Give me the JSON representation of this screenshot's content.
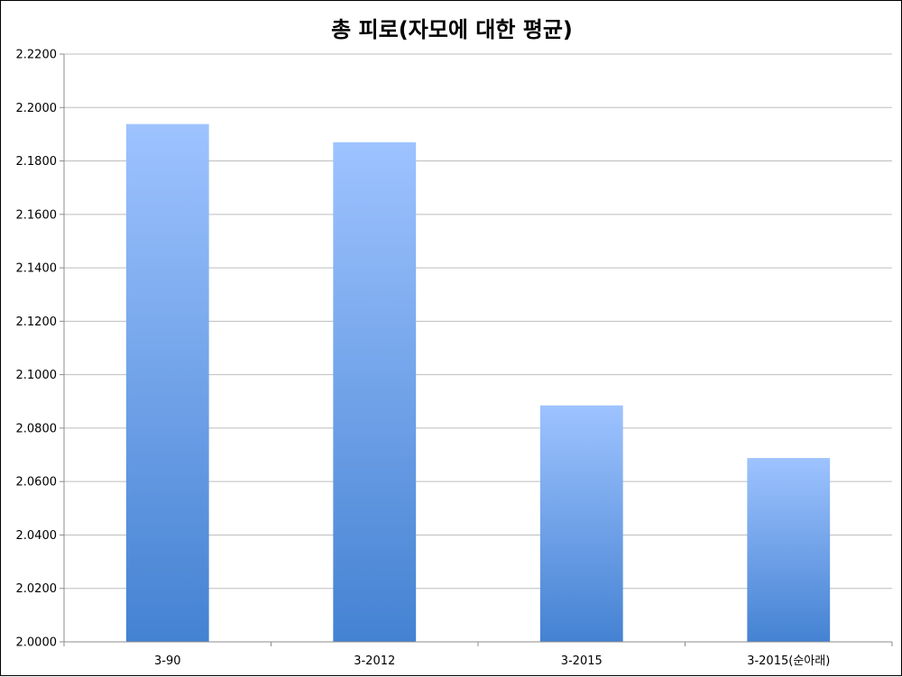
{
  "chart_data": {
    "type": "bar",
    "title": "총 피로(자모에 대한 평균)",
    "xlabel": "",
    "ylabel": "",
    "categories": [
      "3-90",
      "3-2012",
      "3-2015",
      "3-2015(순아래)"
    ],
    "values": [
      2.1938,
      2.187,
      2.0885,
      2.0688
    ],
    "ylim": [
      2.0,
      2.22
    ],
    "yticks": [
      "2.0000",
      "2.0200",
      "2.0400",
      "2.0600",
      "2.0800",
      "2.1000",
      "2.1200",
      "2.1400",
      "2.1600",
      "2.1800",
      "2.2000",
      "2.2200"
    ],
    "grid": true,
    "legend": "none",
    "colors": {
      "bar_top": "#9EC3FF",
      "bar_bottom": "#4482D2",
      "grid": "#BEBEBE",
      "axis": "#8C8C8C"
    }
  }
}
